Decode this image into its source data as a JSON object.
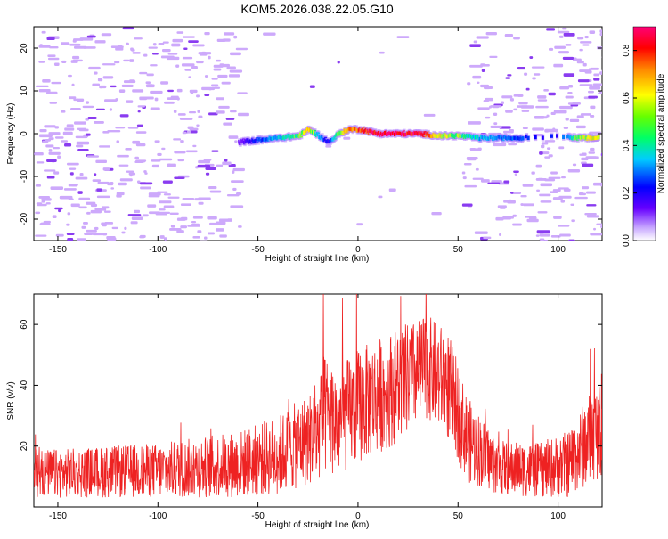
{
  "title": "KOM5.2026.038.22.05.G10",
  "chart_data": [
    {
      "type": "heatmap",
      "title": "KOM5.2026.038.22.05.G10",
      "xlabel": "Height of straight line (km)",
      "ylabel": "Frequency (Hz)",
      "xlim": [
        -162,
        122
      ],
      "ylim": [
        -25,
        25
      ],
      "xticks": [
        -150,
        -100,
        -50,
        0,
        50,
        100
      ],
      "yticks": [
        -20,
        -10,
        0,
        10,
        20
      ],
      "colorbar": {
        "label": "Normalized spectral amplitude",
        "range": [
          0,
          0.9
        ],
        "ticks": [
          0.0,
          0.2,
          0.4,
          0.6,
          0.8
        ]
      },
      "trace": {
        "x": [
          -60,
          -50,
          -40,
          -30,
          -25,
          -20,
          -15,
          -10,
          -5,
          0,
          5,
          10,
          20,
          30,
          40,
          50,
          60,
          70,
          80,
          100,
          110,
          120
        ],
        "y": [
          -2,
          -1.5,
          -1,
          -0.5,
          1,
          -0.5,
          -2,
          0,
          1,
          1,
          0.5,
          0,
          0,
          0,
          -0.5,
          -0.5,
          -1,
          -1,
          -1,
          -0.5,
          -1,
          -1
        ],
        "amplitude": [
          0.1,
          0.25,
          0.35,
          0.45,
          0.6,
          0.3,
          0.2,
          0.5,
          0.65,
          0.7,
          0.75,
          0.9,
          0.85,
          0.8,
          0.55,
          0.45,
          0.35,
          0.3,
          0.25,
          0.2,
          0.5,
          0.55
        ]
      }
    },
    {
      "type": "line",
      "xlabel": "Height of straight line (km)",
      "ylabel": "SNR (v/v)",
      "xlim": [
        -162,
        122
      ],
      "ylim": [
        0,
        70
      ],
      "xticks": [
        -150,
        -100,
        -50,
        0,
        50,
        100
      ],
      "yticks": [
        20,
        40,
        60
      ],
      "color": "#ee2222",
      "envelope": {
        "x": [
          -162,
          -150,
          -100,
          -60,
          -40,
          -20,
          -17,
          -10,
          0,
          20,
          35,
          45,
          55,
          70,
          90,
          105,
          115,
          122
        ],
        "mean": [
          11,
          11,
          12,
          14,
          17,
          24,
          30,
          28,
          33,
          40,
          46,
          40,
          22,
          13,
          12,
          14,
          22,
          26
        ],
        "spread": [
          8,
          8,
          9,
          11,
          13,
          16,
          20,
          18,
          19,
          19,
          17,
          18,
          14,
          9,
          9,
          11,
          15,
          16
        ]
      }
    }
  ]
}
